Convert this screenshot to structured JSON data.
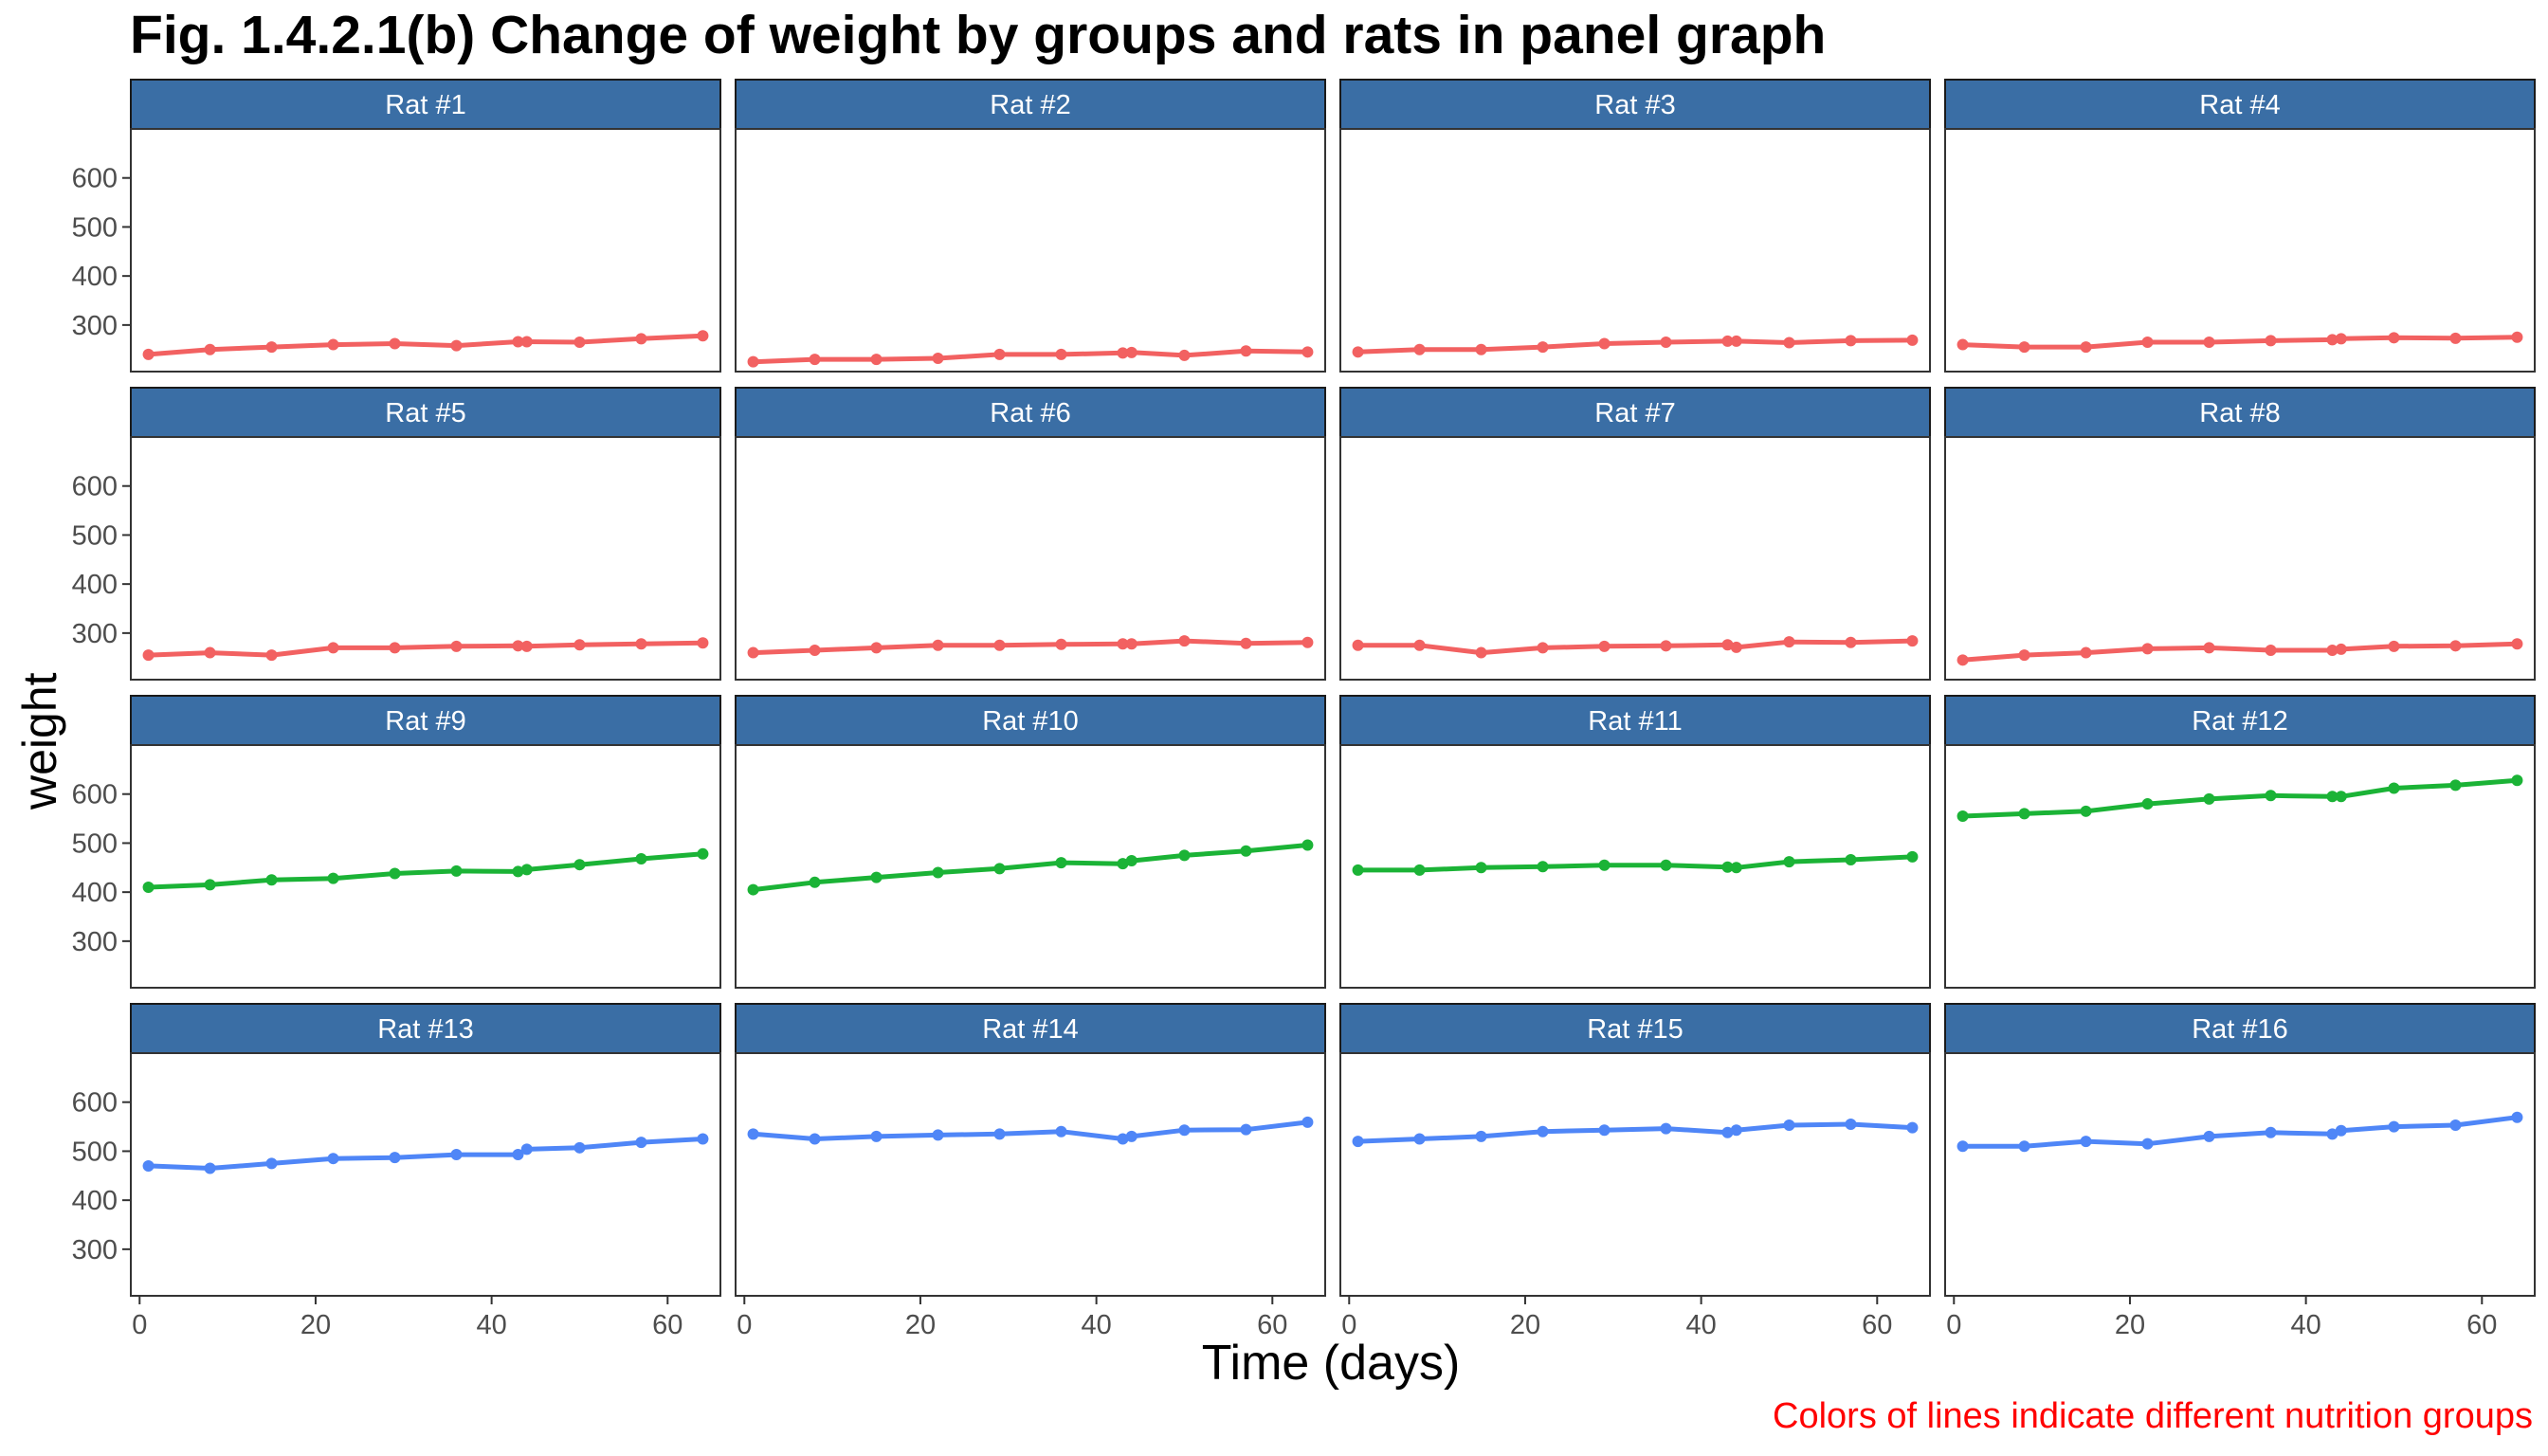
{
  "title": "Fig. 1.4.2.1(b) Change of weight by groups and rats in panel graph",
  "caption": "Colors of lines indicate different nutrition groups",
  "colors": {
    "strip_fill": "#3A6EA5",
    "group1": "#F26161",
    "group2": "#1BB336",
    "group3": "#4F86F7"
  },
  "chart_data": {
    "type": "line",
    "xlabel": "Time (days)",
    "ylabel": "weight",
    "xlim": [
      -1,
      66
    ],
    "ylim": [
      205,
      700
    ],
    "x_ticks": [
      0,
      20,
      40,
      60
    ],
    "y_ticks": [
      300,
      400,
      500,
      600
    ],
    "x": [
      1,
      8,
      15,
      22,
      29,
      36,
      43,
      44,
      50,
      57,
      64
    ],
    "grid": false,
    "panels": [
      {
        "name": "Rat #1",
        "group": "group1",
        "values": [
          240,
          250,
          255,
          260,
          262,
          258,
          266,
          266,
          265,
          272,
          278
        ]
      },
      {
        "name": "Rat #2",
        "group": "group1",
        "values": [
          225,
          230,
          230,
          232,
          240,
          240,
          243,
          244,
          238,
          247,
          245
        ]
      },
      {
        "name": "Rat #3",
        "group": "group1",
        "values": [
          245,
          250,
          250,
          255,
          262,
          265,
          267,
          267,
          264,
          268,
          269
        ]
      },
      {
        "name": "Rat #4",
        "group": "group1",
        "values": [
          260,
          255,
          255,
          265,
          265,
          268,
          270,
          272,
          274,
          273,
          275
        ]
      },
      {
        "name": "Rat #5",
        "group": "group1",
        "values": [
          255,
          260,
          255,
          270,
          270,
          273,
          274,
          273,
          276,
          278,
          280
        ]
      },
      {
        "name": "Rat #6",
        "group": "group1",
        "values": [
          260,
          265,
          270,
          275,
          275,
          277,
          278,
          278,
          284,
          279,
          281
        ]
      },
      {
        "name": "Rat #7",
        "group": "group1",
        "values": [
          275,
          275,
          260,
          270,
          273,
          274,
          276,
          271,
          282,
          281,
          284
        ]
      },
      {
        "name": "Rat #8",
        "group": "group1",
        "values": [
          245,
          255,
          260,
          268,
          270,
          265,
          265,
          267,
          273,
          274,
          278
        ]
      },
      {
        "name": "Rat #9",
        "group": "group2",
        "values": [
          410,
          415,
          425,
          428,
          438,
          443,
          442,
          446,
          456,
          468,
          478
        ]
      },
      {
        "name": "Rat #10",
        "group": "group2",
        "values": [
          405,
          420,
          430,
          440,
          448,
          460,
          458,
          464,
          475,
          484,
          496
        ]
      },
      {
        "name": "Rat #11",
        "group": "group2",
        "values": [
          445,
          445,
          450,
          452,
          455,
          455,
          451,
          450,
          462,
          466,
          472
        ]
      },
      {
        "name": "Rat #12",
        "group": "group2",
        "values": [
          555,
          560,
          565,
          580,
          590,
          597,
          595,
          595,
          612,
          618,
          628
        ]
      },
      {
        "name": "Rat #13",
        "group": "group3",
        "values": [
          470,
          465,
          475,
          485,
          487,
          493,
          493,
          504,
          507,
          518,
          525
        ]
      },
      {
        "name": "Rat #14",
        "group": "group3",
        "values": [
          535,
          525,
          530,
          533,
          535,
          540,
          525,
          530,
          543,
          544,
          559
        ]
      },
      {
        "name": "Rat #15",
        "group": "group3",
        "values": [
          520,
          525,
          530,
          540,
          543,
          546,
          538,
          543,
          553,
          555,
          548
        ]
      },
      {
        "name": "Rat #16",
        "group": "group3",
        "values": [
          510,
          510,
          520,
          515,
          530,
          538,
          535,
          542,
          550,
          553,
          569
        ]
      }
    ]
  }
}
